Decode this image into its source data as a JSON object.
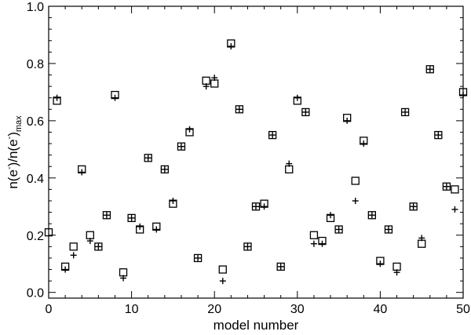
{
  "chart_data": {
    "type": "scatter",
    "xlabel": "model number",
    "ylabel": {
      "main": "n(e",
      "sup1": "-",
      "mid": ")/n(e",
      "sup2": "-",
      "end": ")",
      "sub": "max"
    },
    "xlim": [
      0,
      50
    ],
    "ylim": [
      -0.02,
      1.0
    ],
    "xticks": [
      0,
      10,
      20,
      30,
      40,
      50
    ],
    "yticks": [
      0.0,
      0.2,
      0.4,
      0.6,
      0.8,
      1.0
    ],
    "xtick_labels": [
      "0",
      "10",
      "20",
      "30",
      "40",
      "50"
    ],
    "ytick_labels": [
      "0.0",
      "0.2",
      "0.4",
      "0.6",
      "0.8",
      "1.0"
    ],
    "grid": false,
    "series": [
      {
        "marker": "square",
        "x": [
          0,
          1,
          2,
          3,
          4,
          5,
          6,
          7,
          8,
          9,
          10,
          11,
          12,
          13,
          14,
          15,
          16,
          17,
          18,
          19,
          20,
          21,
          22,
          23,
          24,
          25,
          26,
          27,
          28,
          29,
          30,
          31,
          32,
          33,
          34,
          35,
          36,
          37,
          38,
          39,
          40,
          41,
          42,
          43,
          44,
          45,
          46,
          47,
          48,
          49,
          50
        ],
        "y": [
          0.21,
          0.67,
          0.09,
          0.16,
          0.43,
          0.2,
          0.16,
          0.27,
          0.69,
          0.07,
          0.26,
          0.22,
          0.47,
          0.23,
          0.43,
          0.31,
          0.51,
          0.56,
          0.12,
          0.74,
          0.73,
          0.08,
          0.87,
          0.64,
          0.16,
          0.3,
          0.31,
          0.55,
          0.09,
          0.43,
          0.67,
          0.63,
          0.2,
          0.18,
          0.26,
          0.22,
          0.61,
          0.39,
          0.53,
          0.27,
          0.11,
          0.22,
          0.09,
          0.63,
          0.3,
          0.17,
          0.78,
          0.55,
          0.37,
          0.36,
          0.7
        ]
      },
      {
        "marker": "plus",
        "x": [
          1,
          2,
          3,
          4,
          5,
          6,
          7,
          8,
          9,
          10,
          11,
          12,
          13,
          14,
          15,
          16,
          17,
          18,
          19,
          20,
          21,
          22,
          23,
          24,
          25,
          26,
          27,
          28,
          29,
          30,
          31,
          32,
          33,
          34,
          35,
          36,
          37,
          38,
          39,
          40,
          41,
          42,
          43,
          44,
          45,
          46,
          47,
          48,
          49,
          50
        ],
        "y": [
          0.68,
          0.08,
          0.13,
          0.42,
          0.18,
          0.16,
          0.27,
          0.68,
          0.05,
          0.26,
          0.23,
          0.47,
          0.22,
          0.43,
          0.32,
          0.51,
          0.57,
          0.12,
          0.72,
          0.75,
          0.04,
          0.86,
          0.64,
          0.16,
          0.3,
          0.3,
          0.55,
          0.09,
          0.45,
          0.68,
          0.63,
          0.17,
          0.17,
          0.27,
          0.22,
          0.6,
          0.32,
          0.52,
          0.27,
          0.1,
          0.22,
          0.07,
          0.63,
          0.3,
          0.19,
          0.78,
          0.55,
          0.37,
          0.29,
          0.69
        ]
      }
    ]
  }
}
